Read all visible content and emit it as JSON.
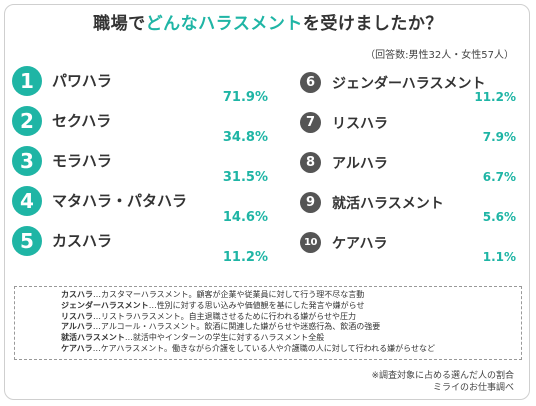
{
  "title_prefix": "職場で",
  "title_highlight": "どんなハラスメント",
  "title_suffix": "を受けましたか？",
  "respondents": "（回答数:男性32人・女性57人）",
  "chart_data": {
    "type": "table",
    "title": "職場でどんなハラスメントを受けましたか？",
    "categories": [
      "パワハラ",
      "セクハラ",
      "モラハラ",
      "マタハラ・パタハラ",
      "カスハラ",
      "ジェンダーハラスメント",
      "リスハラ",
      "アルハラ",
      "就活ハラスメント",
      "ケアハラ"
    ],
    "values": [
      71.9,
      34.8,
      31.5,
      14.6,
      11.2,
      11.2,
      7.9,
      6.7,
      5.6,
      1.1
    ],
    "unit": "%"
  },
  "items": [
    {
      "rank": "1",
      "name": "パワハラ",
      "pct": "71.9%"
    },
    {
      "rank": "2",
      "name": "セクハラ",
      "pct": "34.8%"
    },
    {
      "rank": "3",
      "name": "モラハラ",
      "pct": "31.5%"
    },
    {
      "rank": "4",
      "name": "マタハラ・パタハラ",
      "pct": "14.6%"
    },
    {
      "rank": "5",
      "name": "カスハラ",
      "pct": "11.2%"
    },
    {
      "rank": "6",
      "name": "ジェンダーハラスメント",
      "pct": "11.2%"
    },
    {
      "rank": "7",
      "name": "リスハラ",
      "pct": "7.9%"
    },
    {
      "rank": "8",
      "name": "アルハラ",
      "pct": "6.7%"
    },
    {
      "rank": "9",
      "name": "就活ハラスメント",
      "pct": "5.6%"
    },
    {
      "rank": "10",
      "name": "ケアハラ",
      "pct": "1.1%"
    }
  ],
  "glossary": [
    {
      "term": "カスハラ",
      "desc": "…カスタマーハラスメント。顧客が企業や従業員に対して行う理不尽な言動"
    },
    {
      "term": "ジェンダーハラスメント",
      "desc": "…性別に対する思い込みや価値観を基にした発言や嫌がらせ"
    },
    {
      "term": "リスハラ",
      "desc": "…リストラハラスメント。自主退職させるために行われる嫌がらせや圧力"
    },
    {
      "term": "アルハラ",
      "desc": "…アルコール・ハラスメント。飲酒に関連した嫌がらせや迷惑行為、飲酒の強要"
    },
    {
      "term": "就活ハラスメント",
      "desc": "…就活中やインターンの学生に対するハラスメント全般"
    },
    {
      "term": "ケアハラ",
      "desc": "…ケアハラスメント。働きながら介護をしている人や介護職の人に対して行われる嫌がらせなど"
    }
  ],
  "footer_note": "※調査対象に占める選んだ人の割合",
  "footer_source": "ミライのお仕事調べ",
  "colors": {
    "accent": "#1fb5a5",
    "badge_dark": "#555555"
  }
}
